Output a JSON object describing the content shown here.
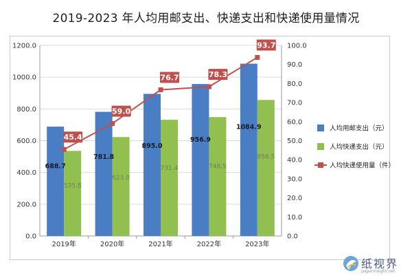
{
  "title": "2019-2023 年人均用邮支出、快递支出和快递使用量情况",
  "watermark": {
    "text": "纸视界",
    "subtext": "paperinsight.net"
  },
  "colors": {
    "bar_postal": "#4a7ec4",
    "bar_express": "#92c050",
    "line": "#c0504d",
    "grid": "#d9d9d9",
    "axis": "#9a9a9a"
  },
  "chart_data": {
    "type": "bar",
    "categories": [
      "2019年",
      "2020年",
      "2021年",
      "2022年",
      "2023年"
    ],
    "series": [
      {
        "name": "人均用邮支出（元）",
        "type": "bar",
        "axis": "left",
        "values": [
          688.7,
          781.8,
          895.0,
          956.9,
          1084.9
        ],
        "labels": [
          "688.7",
          "781.8",
          "895.0",
          "956.9",
          "1084.9"
        ]
      },
      {
        "name": "人均快递支出（元）",
        "type": "bar",
        "axis": "left",
        "values": [
          535.8,
          623.0,
          731.4,
          748.5,
          856.5
        ],
        "labels": [
          "535.8",
          "623.0",
          "731.4",
          "748.5",
          "856.5"
        ]
      },
      {
        "name": "人均快递使用量（件）",
        "type": "line",
        "axis": "right",
        "values": [
          45.4,
          59.0,
          76.7,
          78.3,
          93.7
        ],
        "labels": [
          "45.4",
          "59.0",
          "76.7",
          "78.3",
          "93.7"
        ]
      }
    ],
    "ylim_left": [
      0,
      1200
    ],
    "yticks_left": [
      "0.0",
      "200.0",
      "400.0",
      "600.0",
      "800.0",
      "1000.0",
      "1200.0"
    ],
    "ylim_right": [
      0,
      100
    ],
    "yticks_right": [
      "0.0",
      "10.0",
      "20.0",
      "30.0",
      "40.0",
      "50.0",
      "60.0",
      "70.0",
      "80.0",
      "90.0",
      "100.0"
    ],
    "grid": true,
    "legend_position": "right"
  }
}
